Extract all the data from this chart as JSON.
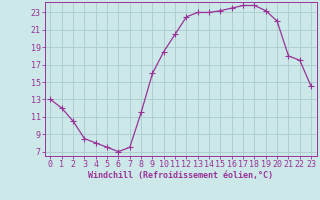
{
  "x": [
    0,
    1,
    2,
    3,
    4,
    5,
    6,
    7,
    8,
    9,
    10,
    11,
    12,
    13,
    14,
    15,
    16,
    17,
    18,
    19,
    20,
    21,
    22,
    23
  ],
  "y": [
    13,
    12,
    10.5,
    8.5,
    8,
    7.5,
    7,
    7.5,
    11.5,
    16,
    18.5,
    20.5,
    22.5,
    23,
    23,
    23.2,
    23.5,
    23.8,
    23.8,
    23.2,
    22,
    18,
    17.5,
    14.5
  ],
  "line_color": "#993399",
  "marker": "+",
  "marker_size": 4,
  "bg_color": "#cce8e8",
  "grid_color": "#aacccc",
  "axis_color": "#993399",
  "tick_label_color": "#993399",
  "xlabel": "Windchill (Refroidissement éolien,°C)",
  "xlabel_color": "#993399",
  "xlabel_fontsize": 6.0,
  "tick_fontsize": 6.0,
  "ylim": [
    6.5,
    24.2
  ],
  "yticks": [
    7,
    9,
    11,
    13,
    15,
    17,
    19,
    21,
    23
  ],
  "xticks": [
    0,
    1,
    2,
    3,
    4,
    5,
    6,
    7,
    8,
    9,
    10,
    11,
    12,
    13,
    14,
    15,
    16,
    17,
    18,
    19,
    20,
    21,
    22,
    23
  ],
  "xlim": [
    -0.5,
    23.5
  ]
}
